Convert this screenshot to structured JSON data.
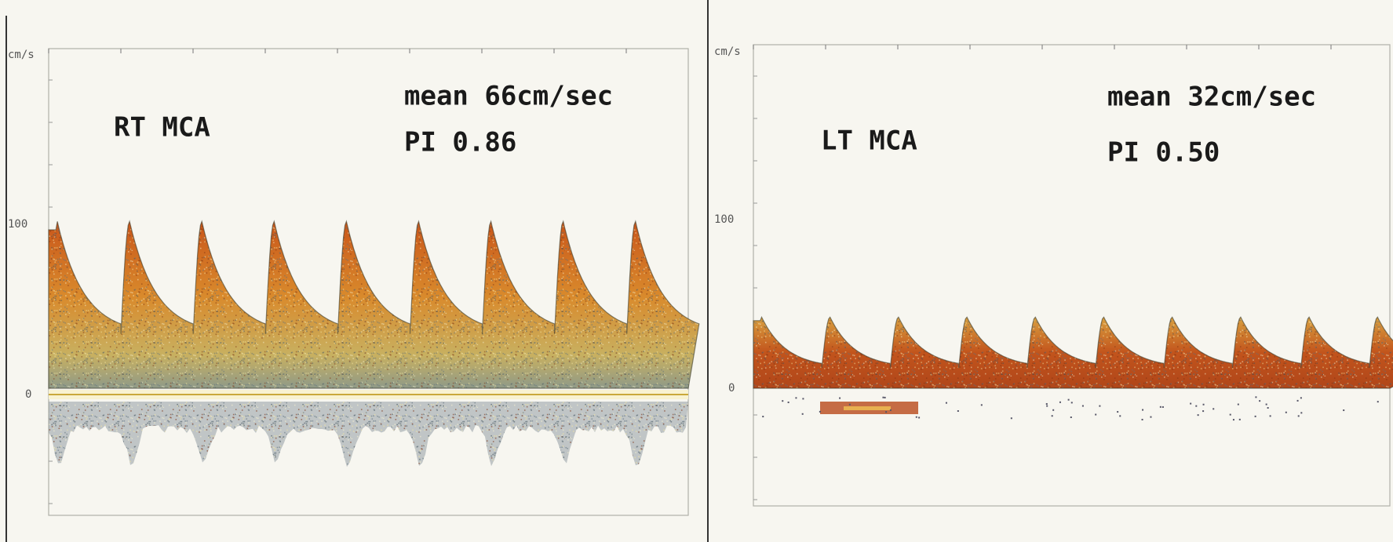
{
  "panels": [
    {
      "unit": "cm/s",
      "axis_labels": [
        "100",
        "0"
      ],
      "vessel": "RT MCA",
      "mean": "mean 66cm/sec",
      "pi": "PI 0.86"
    },
    {
      "unit": "cm/s",
      "axis_labels": [
        "100",
        "0"
      ],
      "vessel": "LT MCA",
      "mean": "mean 32cm/sec",
      "pi": "PI 0.50"
    }
  ]
}
